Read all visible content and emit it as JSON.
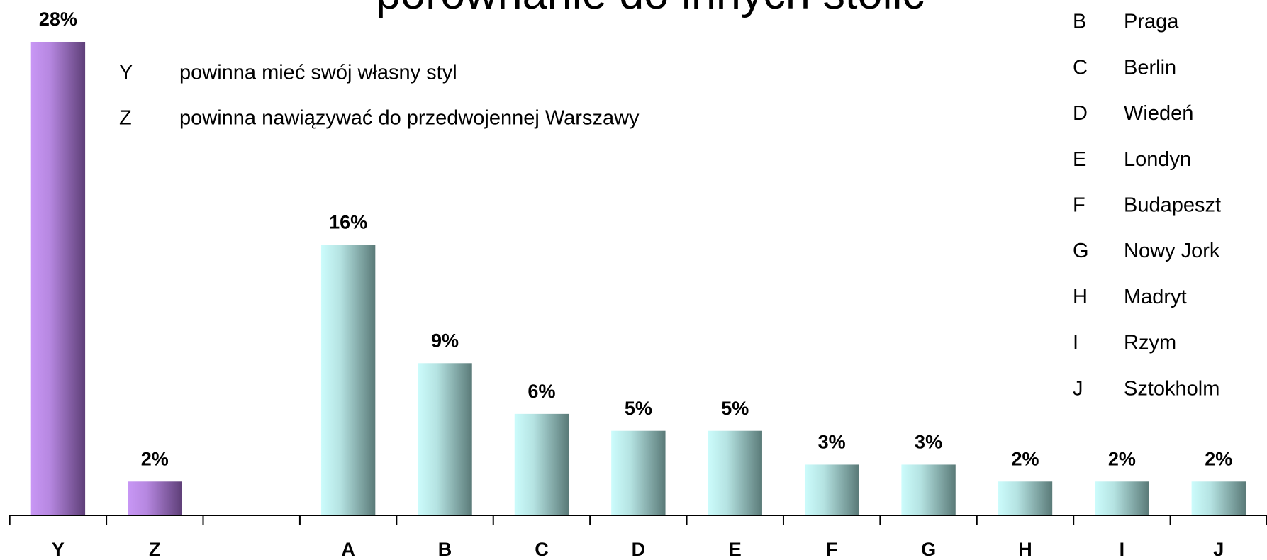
{
  "chart_data": {
    "type": "bar",
    "title": "porównanie do innych stolic",
    "categories": [
      "Y",
      "Z",
      null,
      "A",
      "B",
      "C",
      "D",
      "E",
      "F",
      "G",
      "H",
      "I",
      "J"
    ],
    "values": [
      28,
      2,
      null,
      16,
      9,
      6,
      5,
      5,
      3,
      3,
      2,
      2,
      2
    ],
    "value_labels": [
      "28%",
      "2%",
      null,
      "16%",
      "9%",
      "6%",
      "5%",
      "5%",
      "3%",
      "3%",
      "2%",
      "2%",
      "2%"
    ],
    "colors": [
      "#c897f5",
      "#c897f5",
      null,
      "#ccfcfc",
      "#ccfcfc",
      "#ccfcfc",
      "#ccfcfc",
      "#ccfcfc",
      "#ccfcfc",
      "#ccfcfc",
      "#ccfcfc",
      "#ccfcfc",
      "#ccfcfc"
    ],
    "legend_left": [
      {
        "key": "Y",
        "label": "powinna mieć swój własny styl"
      },
      {
        "key": "Z",
        "label": "powinna nawiązywać do przedwojennej Warszawy"
      }
    ],
    "legend_right": [
      {
        "key": "B",
        "label": "Praga"
      },
      {
        "key": "C",
        "label": "Berlin"
      },
      {
        "key": "D",
        "label": "Wiedeń"
      },
      {
        "key": "E",
        "label": "Londyn"
      },
      {
        "key": "F",
        "label": "Budapeszt"
      },
      {
        "key": "G",
        "label": "Nowy Jork"
      },
      {
        "key": "H",
        "label": "Madryt"
      },
      {
        "key": "I",
        "label": "Rzym"
      },
      {
        "key": "J",
        "label": "Sztokholm"
      }
    ]
  }
}
